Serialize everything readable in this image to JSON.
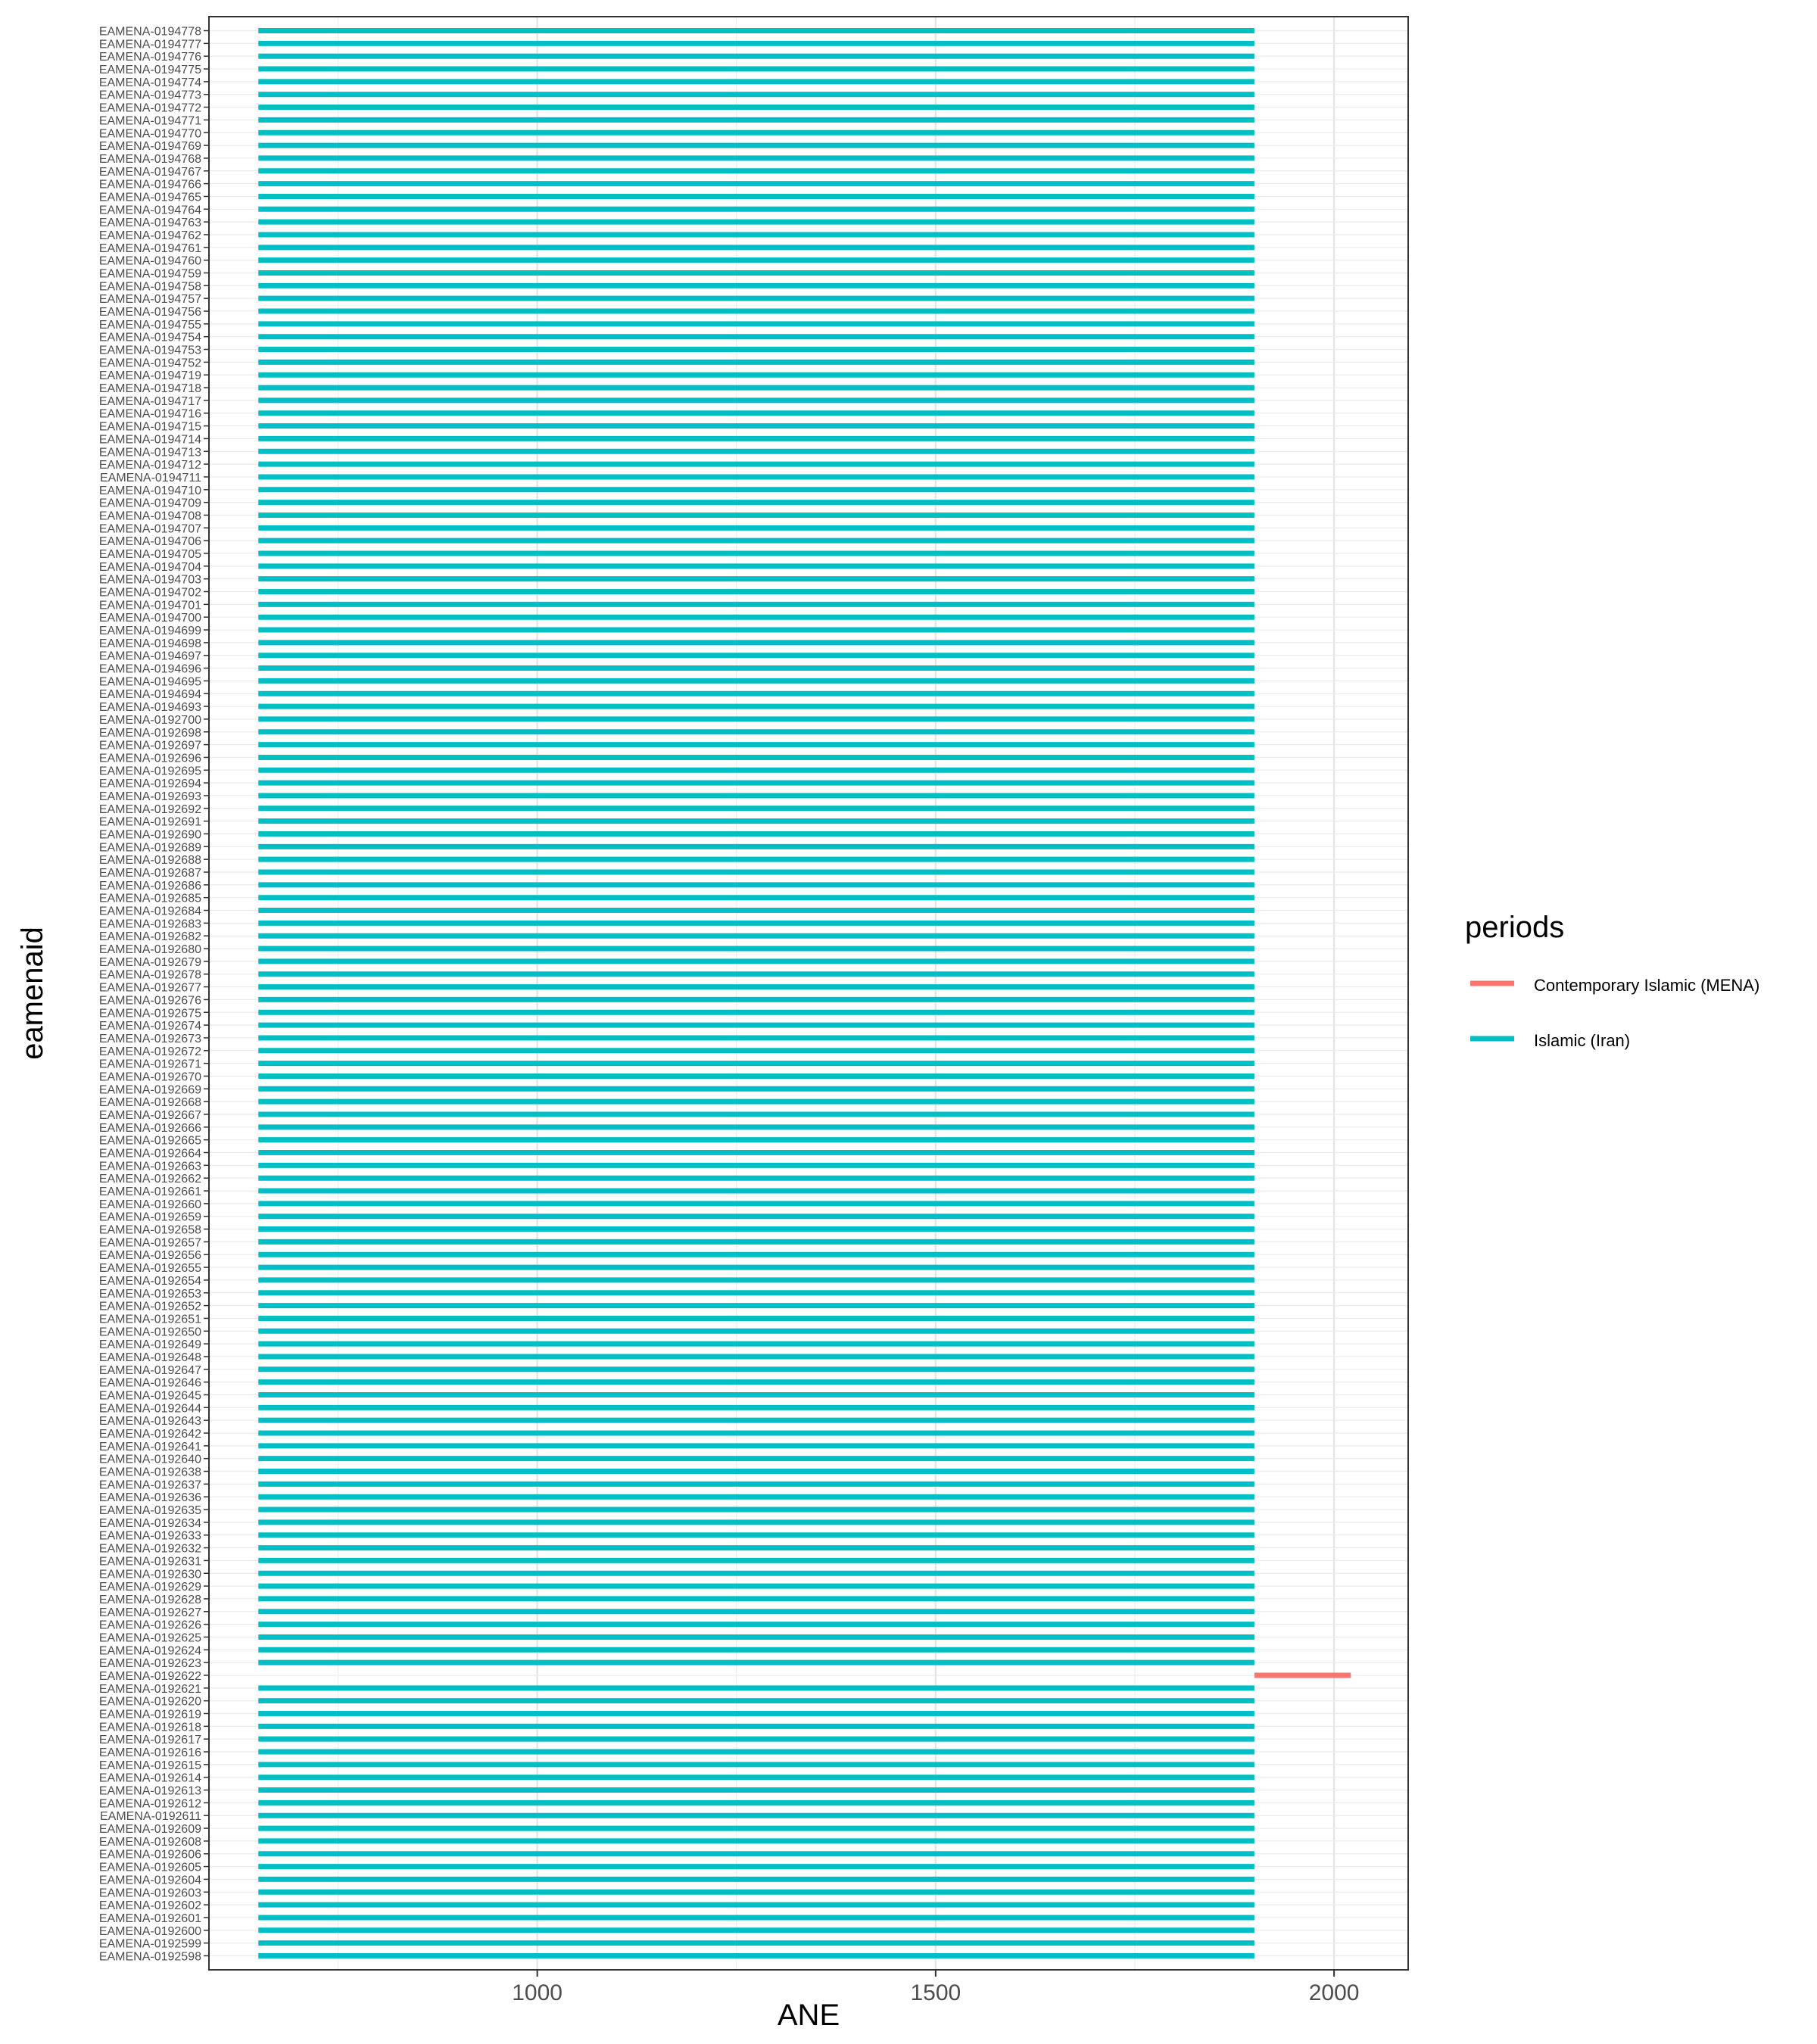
{
  "chart_data": {
    "type": "timeline",
    "title": "",
    "xlabel": "ANE",
    "ylabel": "eamenaid",
    "xlim": [
      588,
      2093
    ],
    "x_ticks": [
      1000,
      1500,
      2000
    ],
    "x_minor_ticks": [
      750,
      1250,
      1750
    ],
    "grid": true,
    "legend": {
      "title": "periods",
      "position": "right",
      "entries": [
        {
          "label": "Contemporary Islamic (MENA)",
          "color": "#F8766D"
        },
        {
          "label": "Islamic (Iran)",
          "color": "#00BFC4"
        }
      ]
    },
    "series": [
      {
        "name": "Islamic (Iran)",
        "color": "#00BFC4",
        "start": 650,
        "end": 1900
      },
      {
        "name": "Contemporary Islamic (MENA)",
        "color": "#F8766D",
        "start": 1900,
        "end": 2021
      }
    ],
    "sites": [
      "EAMENA-0194778",
      "EAMENA-0194777",
      "EAMENA-0194776",
      "EAMENA-0194775",
      "EAMENA-0194774",
      "EAMENA-0194773",
      "EAMENA-0194772",
      "EAMENA-0194771",
      "EAMENA-0194770",
      "EAMENA-0194769",
      "EAMENA-0194768",
      "EAMENA-0194767",
      "EAMENA-0194766",
      "EAMENA-0194765",
      "EAMENA-0194764",
      "EAMENA-0194763",
      "EAMENA-0194762",
      "EAMENA-0194761",
      "EAMENA-0194760",
      "EAMENA-0194759",
      "EAMENA-0194758",
      "EAMENA-0194757",
      "EAMENA-0194756",
      "EAMENA-0194755",
      "EAMENA-0194754",
      "EAMENA-0194753",
      "EAMENA-0194752",
      "EAMENA-0194719",
      "EAMENA-0194718",
      "EAMENA-0194717",
      "EAMENA-0194716",
      "EAMENA-0194715",
      "EAMENA-0194714",
      "EAMENA-0194713",
      "EAMENA-0194712",
      "EAMENA-0194711",
      "EAMENA-0194710",
      "EAMENA-0194709",
      "EAMENA-0194708",
      "EAMENA-0194707",
      "EAMENA-0194706",
      "EAMENA-0194705",
      "EAMENA-0194704",
      "EAMENA-0194703",
      "EAMENA-0194702",
      "EAMENA-0194701",
      "EAMENA-0194700",
      "EAMENA-0194699",
      "EAMENA-0194698",
      "EAMENA-0194697",
      "EAMENA-0194696",
      "EAMENA-0194695",
      "EAMENA-0194694",
      "EAMENA-0194693",
      "EAMENA-0192700",
      "EAMENA-0192698",
      "EAMENA-0192697",
      "EAMENA-0192696",
      "EAMENA-0192695",
      "EAMENA-0192694",
      "EAMENA-0192693",
      "EAMENA-0192692",
      "EAMENA-0192691",
      "EAMENA-0192690",
      "EAMENA-0192689",
      "EAMENA-0192688",
      "EAMENA-0192687",
      "EAMENA-0192686",
      "EAMENA-0192685",
      "EAMENA-0192684",
      "EAMENA-0192683",
      "EAMENA-0192682",
      "EAMENA-0192680",
      "EAMENA-0192679",
      "EAMENA-0192678",
      "EAMENA-0192677",
      "EAMENA-0192676",
      "EAMENA-0192675",
      "EAMENA-0192674",
      "EAMENA-0192673",
      "EAMENA-0192672",
      "EAMENA-0192671",
      "EAMENA-0192670",
      "EAMENA-0192669",
      "EAMENA-0192668",
      "EAMENA-0192667",
      "EAMENA-0192666",
      "EAMENA-0192665",
      "EAMENA-0192664",
      "EAMENA-0192663",
      "EAMENA-0192662",
      "EAMENA-0192661",
      "EAMENA-0192660",
      "EAMENA-0192659",
      "EAMENA-0192658",
      "EAMENA-0192657",
      "EAMENA-0192656",
      "EAMENA-0192655",
      "EAMENA-0192654",
      "EAMENA-0192653",
      "EAMENA-0192652",
      "EAMENA-0192651",
      "EAMENA-0192650",
      "EAMENA-0192649",
      "EAMENA-0192648",
      "EAMENA-0192647",
      "EAMENA-0192646",
      "EAMENA-0192645",
      "EAMENA-0192644",
      "EAMENA-0192643",
      "EAMENA-0192642",
      "EAMENA-0192641",
      "EAMENA-0192640",
      "EAMENA-0192638",
      "EAMENA-0192637",
      "EAMENA-0192636",
      "EAMENA-0192635",
      "EAMENA-0192634",
      "EAMENA-0192633",
      "EAMENA-0192632",
      "EAMENA-0192631",
      "EAMENA-0192630",
      "EAMENA-0192629",
      "EAMENA-0192628",
      "EAMENA-0192627",
      "EAMENA-0192626",
      "EAMENA-0192625",
      "EAMENA-0192624",
      "EAMENA-0192623",
      "EAMENA-0192622",
      "EAMENA-0192621",
      "EAMENA-0192620",
      "EAMENA-0192619",
      "EAMENA-0192618",
      "EAMENA-0192617",
      "EAMENA-0192616",
      "EAMENA-0192615",
      "EAMENA-0192614",
      "EAMENA-0192613",
      "EAMENA-0192612",
      "EAMENA-0192611",
      "EAMENA-0192609",
      "EAMENA-0192608",
      "EAMENA-0192606",
      "EAMENA-0192605",
      "EAMENA-0192604",
      "EAMENA-0192603",
      "EAMENA-0192602",
      "EAMENA-0192601",
      "EAMENA-0192600",
      "EAMENA-0192599",
      "EAMENA-0192598"
    ],
    "exceptions": {
      "EAMENA-0192622": "Contemporary Islamic (MENA)"
    }
  }
}
